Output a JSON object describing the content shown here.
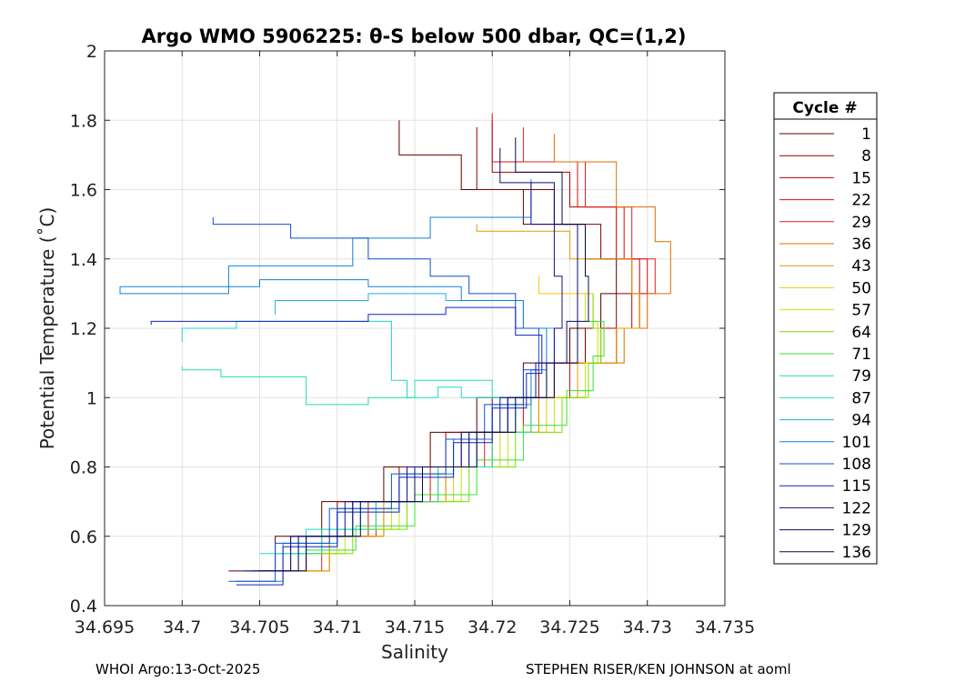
{
  "chart_data": {
    "type": "line",
    "title": "Argo WMO 5906225: θ-S below 500 dbar,  QC=(1,2)",
    "xlabel": "Salinity",
    "ylabel": "Potential Temperature (˚C)",
    "xlim": [
      34.695,
      34.735
    ],
    "ylim": [
      0.4,
      2.0
    ],
    "grid": true,
    "x_ticks": [
      "34.695",
      "34.7",
      "34.705",
      "34.71",
      "34.715",
      "34.72",
      "34.725",
      "34.73",
      "34.735"
    ],
    "y_ticks": [
      "0.4",
      "0.6",
      "0.8",
      "1",
      "1.2",
      "1.4",
      "1.6",
      "1.8",
      "2"
    ],
    "legend": {
      "title": "Cycle #",
      "placement": "outside-right",
      "entries": [
        "1",
        "8",
        "15",
        "22",
        "29",
        "36",
        "43",
        "50",
        "57",
        "64",
        "71",
        "79",
        "87",
        "94",
        "101",
        "108",
        "115",
        "122",
        "129",
        "136"
      ],
      "colors": [
        "#5a0000",
        "#8a0000",
        "#b80000",
        "#d41010",
        "#e02020",
        "#e06a00",
        "#e89a00",
        "#f0c800",
        "#c8e600",
        "#78e000",
        "#38e030",
        "#20e0a0",
        "#20d8c8",
        "#20b0e0",
        "#1080d8",
        "#1050d0",
        "#1020c0",
        "#10108a",
        "#0a0a6a",
        "#08084a"
      ]
    },
    "series": [
      {
        "name": "1",
        "x": [
          34.703,
          34.706,
          34.709,
          34.713,
          34.716,
          34.719,
          34.722,
          34.725,
          34.727,
          34.728,
          34.726,
          34.722,
          34.718,
          34.714
        ],
        "y": [
          0.5,
          0.6,
          0.7,
          0.8,
          0.9,
          1.0,
          1.1,
          1.2,
          1.3,
          1.4,
          1.5,
          1.6,
          1.7,
          1.8
        ]
      },
      {
        "name": "8",
        "x": [
          34.705,
          34.707,
          34.71,
          34.714,
          34.717,
          34.72,
          34.723,
          34.726,
          34.728,
          34.729,
          34.727,
          34.724,
          34.719
        ],
        "y": [
          0.5,
          0.6,
          0.7,
          0.8,
          0.9,
          1.0,
          1.1,
          1.2,
          1.3,
          1.4,
          1.5,
          1.6,
          1.78
        ]
      },
      {
        "name": "15",
        "x": [
          34.705,
          34.708,
          34.711,
          34.715,
          34.718,
          34.721,
          34.724,
          34.727,
          34.729,
          34.7295,
          34.728,
          34.725,
          34.72
        ],
        "y": [
          0.5,
          0.6,
          0.7,
          0.8,
          0.9,
          1.0,
          1.1,
          1.2,
          1.3,
          1.4,
          1.55,
          1.65,
          1.8
        ]
      },
      {
        "name": "22",
        "x": [
          34.705,
          34.708,
          34.712,
          34.716,
          34.719,
          34.722,
          34.725,
          34.728,
          34.7295,
          34.73,
          34.7285,
          34.7255,
          34.72
        ],
        "y": [
          0.5,
          0.6,
          0.7,
          0.8,
          0.9,
          1.0,
          1.1,
          1.2,
          1.3,
          1.4,
          1.55,
          1.68,
          1.82
        ]
      },
      {
        "name": "29",
        "x": [
          34.7055,
          34.709,
          34.7125,
          34.7165,
          34.7195,
          34.7225,
          34.7255,
          34.728,
          34.7295,
          34.7305,
          34.729,
          34.726,
          34.722
        ],
        "y": [
          0.5,
          0.6,
          0.7,
          0.8,
          0.9,
          1.0,
          1.1,
          1.2,
          1.3,
          1.4,
          1.55,
          1.68,
          1.78
        ]
      },
      {
        "name": "36",
        "x": [
          34.706,
          34.7095,
          34.713,
          34.717,
          34.72,
          34.723,
          34.726,
          34.7285,
          34.73,
          34.7315,
          34.7305,
          34.728,
          34.724
        ],
        "y": [
          0.5,
          0.6,
          0.7,
          0.8,
          0.9,
          1.0,
          1.1,
          1.2,
          1.3,
          1.45,
          1.55,
          1.68,
          1.76
        ]
      },
      {
        "name": "43",
        "x": [
          34.706,
          34.7095,
          34.713,
          34.717,
          34.72,
          34.723,
          34.7255,
          34.728,
          34.7295,
          34.729,
          34.725,
          34.719
        ],
        "y": [
          0.5,
          0.6,
          0.7,
          0.8,
          0.9,
          1.0,
          1.1,
          1.2,
          1.3,
          1.4,
          1.48,
          1.5
        ]
      },
      {
        "name": "50",
        "x": [
          34.707,
          34.71,
          34.7135,
          34.7175,
          34.7205,
          34.7235,
          34.726,
          34.727,
          34.7265,
          34.723
        ],
        "y": [
          0.55,
          0.62,
          0.7,
          0.8,
          0.9,
          1.0,
          1.1,
          1.2,
          1.3,
          1.35
        ]
      },
      {
        "name": "57",
        "x": [
          34.7075,
          34.7105,
          34.714,
          34.718,
          34.721,
          34.724,
          34.726,
          34.7268,
          34.726
        ],
        "y": [
          0.55,
          0.62,
          0.7,
          0.8,
          0.9,
          1.0,
          1.1,
          1.22,
          1.3
        ]
      },
      {
        "name": "64",
        "x": [
          34.708,
          34.711,
          34.7145,
          34.7185,
          34.7215,
          34.7245,
          34.7262,
          34.727,
          34.7265
        ],
        "y": [
          0.55,
          0.62,
          0.7,
          0.8,
          0.9,
          1.0,
          1.1,
          1.2,
          1.3
        ]
      },
      {
        "name": "71",
        "x": [
          34.708,
          34.7112,
          34.715,
          34.719,
          34.722,
          34.7248,
          34.7265,
          34.7272,
          34.7262
        ],
        "y": [
          0.56,
          0.63,
          0.72,
          0.82,
          0.92,
          1.02,
          1.12,
          1.22,
          1.3
        ]
      },
      {
        "name": "79",
        "x": [
          34.706,
          34.709,
          34.7125,
          34.7165,
          34.72,
          34.7225,
          34.72,
          34.715,
          34.712,
          34.708,
          34.7025,
          34.7
        ],
        "y": [
          0.55,
          0.62,
          0.7,
          0.8,
          0.9,
          1.0,
          1.05,
          1.0,
          0.98,
          1.06,
          1.08,
          1.09
        ]
      },
      {
        "name": "87",
        "x": [
          34.705,
          34.708,
          34.7115,
          34.7155,
          34.719,
          34.7215,
          34.718,
          34.7165,
          34.7145,
          34.7135,
          34.708,
          34.7035,
          34.7
        ],
        "y": [
          0.55,
          0.62,
          0.7,
          0.8,
          0.9,
          1.0,
          1.03,
          1.0,
          1.05,
          1.22,
          1.22,
          1.2,
          1.16
        ]
      },
      {
        "name": "94",
        "x": [
          34.7045,
          34.7075,
          34.711,
          34.715,
          34.7185,
          34.721,
          34.7235,
          34.724,
          34.722,
          34.717,
          34.712,
          34.706
        ],
        "y": [
          0.5,
          0.6,
          0.7,
          0.8,
          0.9,
          1.0,
          1.1,
          1.2,
          1.28,
          1.3,
          1.28,
          1.24
        ]
      },
      {
        "name": "101",
        "x": [
          34.7035,
          34.7065,
          34.71,
          34.714,
          34.7175,
          34.72,
          34.7225,
          34.7235,
          34.722,
          34.718,
          34.712,
          34.705,
          34.696,
          34.703,
          34.711,
          34.716,
          34.7225
        ],
        "y": [
          0.47,
          0.58,
          0.68,
          0.78,
          0.88,
          0.98,
          1.08,
          1.2,
          1.28,
          1.32,
          1.34,
          1.32,
          1.3,
          1.38,
          1.46,
          1.52,
          1.63
        ]
      },
      {
        "name": "108",
        "x": [
          34.703,
          34.706,
          34.7095,
          34.7135,
          34.717,
          34.7195,
          34.722,
          34.723,
          34.7215,
          34.7185,
          34.716,
          34.712,
          34.707,
          34.702
        ],
        "y": [
          0.47,
          0.58,
          0.68,
          0.78,
          0.88,
          0.98,
          1.08,
          1.2,
          1.3,
          1.35,
          1.4,
          1.46,
          1.5,
          1.52
        ]
      },
      {
        "name": "115",
        "x": [
          34.7035,
          34.7065,
          34.71,
          34.714,
          34.7175,
          34.72,
          34.7222,
          34.7232,
          34.7215,
          34.717,
          34.712,
          34.705,
          34.698
        ],
        "y": [
          0.46,
          0.57,
          0.67,
          0.77,
          0.87,
          0.97,
          1.07,
          1.18,
          1.26,
          1.24,
          1.22,
          1.22,
          1.21
        ]
      },
      {
        "name": "122",
        "x": [
          34.704,
          34.707,
          34.7105,
          34.7145,
          34.718,
          34.7205,
          34.7228,
          34.724,
          34.7245,
          34.724,
          34.7225
        ],
        "y": [
          0.5,
          0.6,
          0.7,
          0.8,
          0.9,
          1.0,
          1.1,
          1.2,
          1.35,
          1.5,
          1.62
        ]
      },
      {
        "name": "129",
        "x": [
          34.7045,
          34.7075,
          34.711,
          34.715,
          34.7185,
          34.721,
          34.7235,
          34.7248,
          34.7255,
          34.7255,
          34.724,
          34.7205
        ],
        "y": [
          0.5,
          0.6,
          0.7,
          0.8,
          0.9,
          1.0,
          1.1,
          1.22,
          1.35,
          1.5,
          1.62,
          1.72
        ]
      },
      {
        "name": "136",
        "x": [
          34.705,
          34.708,
          34.7115,
          34.7155,
          34.719,
          34.7215,
          34.724,
          34.7255,
          34.7262,
          34.726,
          34.7245,
          34.7215
        ],
        "y": [
          0.5,
          0.6,
          0.7,
          0.8,
          0.9,
          1.0,
          1.1,
          1.22,
          1.35,
          1.5,
          1.65,
          1.75
        ]
      }
    ]
  },
  "footer": {
    "left": "WHOI Argo:13-Oct-2025",
    "right": "STEPHEN RISER/KEN JOHNSON at aoml"
  }
}
